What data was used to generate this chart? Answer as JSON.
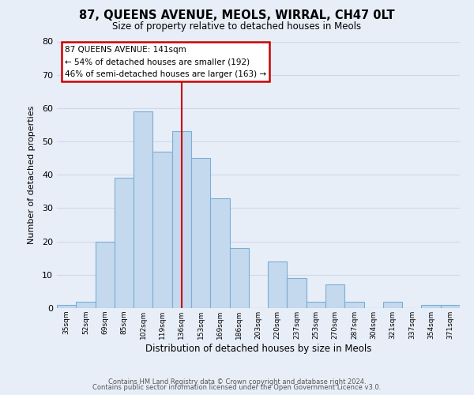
{
  "title": "87, QUEENS AVENUE, MEOLS, WIRRAL, CH47 0LT",
  "subtitle": "Size of property relative to detached houses in Meols",
  "xlabel": "Distribution of detached houses by size in Meols",
  "ylabel": "Number of detached properties",
  "categories": [
    "35sqm",
    "52sqm",
    "69sqm",
    "85sqm",
    "102sqm",
    "119sqm",
    "136sqm",
    "153sqm",
    "169sqm",
    "186sqm",
    "203sqm",
    "220sqm",
    "237sqm",
    "253sqm",
    "270sqm",
    "287sqm",
    "304sqm",
    "321sqm",
    "337sqm",
    "354sqm",
    "371sqm"
  ],
  "values": [
    1,
    2,
    20,
    39,
    59,
    47,
    53,
    45,
    33,
    18,
    0,
    14,
    9,
    2,
    7,
    2,
    0,
    2,
    0,
    1,
    1
  ],
  "bar_color": "#c5d9ee",
  "bar_edge_color": "#7aaed4",
  "vline_x_index": 6,
  "vline_color": "#cc0000",
  "ylim": [
    0,
    80
  ],
  "yticks": [
    0,
    10,
    20,
    30,
    40,
    50,
    60,
    70,
    80
  ],
  "annotation_title": "87 QUEENS AVENUE: 141sqm",
  "annotation_line1": "← 54% of detached houses are smaller (192)",
  "annotation_line2": "46% of semi-detached houses are larger (163) →",
  "annotation_box_color": "#ffffff",
  "annotation_box_edge_color": "#cc0000",
  "footer_line1": "Contains HM Land Registry data © Crown copyright and database right 2024.",
  "footer_line2": "Contains public sector information licensed under the Open Government Licence v3.0.",
  "background_color": "#e8eef8",
  "grid_color": "#d0d8e8"
}
